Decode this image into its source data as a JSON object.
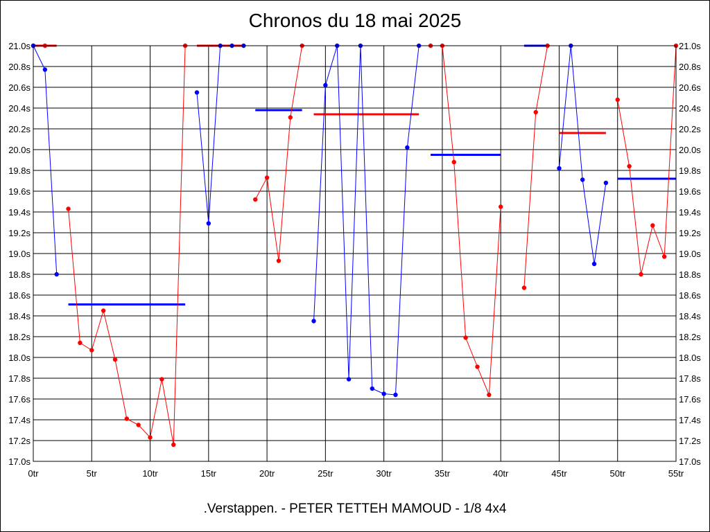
{
  "title": "Chronos du 18 mai 2025",
  "footer": ".Verstappen. - PETER TETTEH MAMOUD - 1/8 4x4",
  "colors": {
    "red": "#ff0000",
    "blue": "#0000ff",
    "grid": "#000000",
    "background": "#ffffff"
  },
  "chart_data": {
    "type": "line",
    "title": "Chronos du 18 mai 2025",
    "xlim": [
      0,
      55
    ],
    "ylim": [
      17.0,
      21.0
    ],
    "grid": true,
    "x_ticks": [
      {
        "v": 0,
        "label": "0tr"
      },
      {
        "v": 5,
        "label": "5tr"
      },
      {
        "v": 10,
        "label": "10tr"
      },
      {
        "v": 15,
        "label": "15tr"
      },
      {
        "v": 20,
        "label": "20tr"
      },
      {
        "v": 25,
        "label": "25tr"
      },
      {
        "v": 30,
        "label": "30tr"
      },
      {
        "v": 35,
        "label": "35tr"
      },
      {
        "v": 40,
        "label": "40tr"
      },
      {
        "v": 45,
        "label": "45tr"
      },
      {
        "v": 50,
        "label": "50tr"
      },
      {
        "v": 55,
        "label": "55tr"
      }
    ],
    "y_ticks": [
      {
        "v": 21.0,
        "label": "21.0s"
      },
      {
        "v": 20.8,
        "label": "20.8s"
      },
      {
        "v": 20.6,
        "label": "20.6s"
      },
      {
        "v": 20.4,
        "label": "20.4s"
      },
      {
        "v": 20.2,
        "label": "20.2s"
      },
      {
        "v": 20.0,
        "label": "20.0s"
      },
      {
        "v": 19.8,
        "label": "19.8s"
      },
      {
        "v": 19.6,
        "label": "19.6s"
      },
      {
        "v": 19.4,
        "label": "19.4s"
      },
      {
        "v": 19.2,
        "label": "19.2s"
      },
      {
        "v": 19.0,
        "label": "19.0s"
      },
      {
        "v": 18.8,
        "label": "18.8s"
      },
      {
        "v": 18.6,
        "label": "18.6s"
      },
      {
        "v": 18.4,
        "label": "18.4s"
      },
      {
        "v": 18.2,
        "label": "18.2s"
      },
      {
        "v": 18.0,
        "label": "18.0s"
      },
      {
        "v": 17.8,
        "label": "17.8s"
      },
      {
        "v": 17.6,
        "label": "17.6s"
      },
      {
        "v": 17.4,
        "label": "17.4s"
      },
      {
        "v": 17.2,
        "label": "17.2s"
      },
      {
        "v": 17.0,
        "label": "17.0s"
      }
    ],
    "series": [
      {
        "color": "red",
        "x": [
          0,
          1
        ],
        "y": [
          21.0,
          21.0
        ]
      },
      {
        "color": "blue",
        "x": [
          0,
          1,
          2
        ],
        "y": [
          21.0,
          20.77,
          18.8
        ]
      },
      {
        "color": "red",
        "x": [
          3,
          4,
          5,
          6,
          7,
          8,
          9,
          10,
          11,
          12,
          13
        ],
        "y": [
          19.43,
          18.14,
          18.07,
          18.45,
          17.98,
          17.41,
          17.35,
          17.23,
          17.79,
          17.16,
          21.0
        ]
      },
      {
        "color": "blue",
        "x": [
          14,
          15,
          16,
          17,
          18
        ],
        "y": [
          20.55,
          19.29,
          21.0,
          21.0,
          21.0
        ]
      },
      {
        "color": "red",
        "x": [
          19,
          20,
          21,
          22,
          23
        ],
        "y": [
          19.52,
          19.73,
          18.93,
          20.31,
          21.0
        ]
      },
      {
        "color": "blue",
        "x": [
          24,
          25,
          26,
          27,
          28,
          29,
          30,
          31,
          32,
          33
        ],
        "y": [
          18.35,
          20.62,
          21.0,
          17.79,
          21.0,
          17.7,
          17.65,
          17.64,
          20.02,
          21.0
        ]
      },
      {
        "color": "red",
        "x": [
          34,
          35,
          36,
          37,
          38,
          39,
          40
        ],
        "y": [
          21.0,
          21.0,
          19.88,
          18.19,
          17.91,
          17.64,
          19.45
        ]
      },
      {
        "color": "red",
        "x": [
          42,
          43,
          44
        ],
        "y": [
          18.67,
          20.36,
          21.0
        ]
      },
      {
        "color": "blue",
        "x": [
          45,
          46,
          47,
          48,
          49
        ],
        "y": [
          19.82,
          21.0,
          19.71,
          18.9,
          19.68
        ]
      },
      {
        "color": "red",
        "x": [
          50,
          51,
          52,
          53,
          54,
          55
        ],
        "y": [
          20.48,
          19.84,
          18.8,
          19.27,
          18.97,
          21.0
        ]
      }
    ],
    "reference_lines": [
      {
        "color": "red",
        "x": [
          0,
          2
        ],
        "y": 21.0
      },
      {
        "color": "blue",
        "x": [
          3,
          13
        ],
        "y": 18.51
      },
      {
        "color": "red",
        "x": [
          14,
          18
        ],
        "y": 21.0
      },
      {
        "color": "blue",
        "x": [
          19,
          23
        ],
        "y": 20.38
      },
      {
        "color": "red",
        "x": [
          24,
          33
        ],
        "y": 20.34
      },
      {
        "color": "blue",
        "x": [
          34,
          40
        ],
        "y": 19.95
      },
      {
        "color": "blue",
        "x": [
          42,
          44
        ],
        "y": 21.0
      },
      {
        "color": "red",
        "x": [
          45,
          49
        ],
        "y": 20.16
      },
      {
        "color": "blue",
        "x": [
          50,
          55
        ],
        "y": 19.72
      }
    ]
  }
}
